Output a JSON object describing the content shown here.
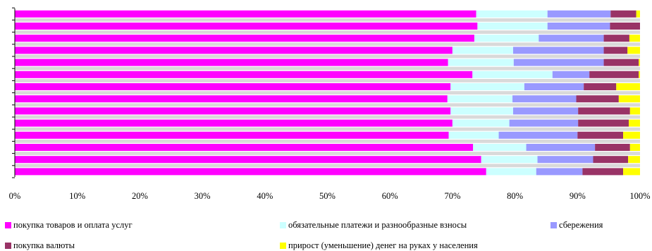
{
  "chart_data": {
    "type": "bar",
    "orientation": "horizontal",
    "stacked": "percent",
    "title": "",
    "xlabel": "",
    "ylabel": "",
    "xlim": [
      0,
      100
    ],
    "x_ticks": [
      "0%",
      "10%",
      "20%",
      "30%",
      "40%",
      "50%",
      "60%",
      "70%",
      "80%",
      "90%",
      "100%"
    ],
    "grid": "vertical",
    "legend_position": "bottom",
    "series": [
      {
        "name": "покупка товаров и оплата услуг",
        "color": "#ff00ff",
        "values": [
          73.8,
          74.0,
          73.5,
          70.0,
          69.3,
          73.2,
          69.7,
          69.2,
          69.7,
          70.0,
          69.4,
          73.3,
          74.6,
          75.4
        ]
      },
      {
        "name": "обязательные платежи и разнообразные взносы",
        "color": "#ccffff",
        "values": [
          11.4,
          11.2,
          10.3,
          9.7,
          10.5,
          12.8,
          11.8,
          10.4,
          10.0,
          9.1,
          8.0,
          8.5,
          9.0,
          8.0
        ]
      },
      {
        "name": "сбережения",
        "color": "#9999ff",
        "values": [
          10.1,
          10.0,
          10.4,
          14.5,
          14.4,
          5.9,
          9.5,
          10.2,
          10.4,
          11.0,
          12.6,
          11.0,
          8.9,
          7.4
        ]
      },
      {
        "name": "покупка валюты",
        "color": "#993366",
        "values": [
          4.1,
          4.8,
          4.1,
          3.8,
          5.6,
          7.9,
          5.2,
          6.8,
          8.3,
          8.1,
          7.3,
          5.6,
          5.6,
          6.5
        ]
      },
      {
        "name": "прирост (уменьшение) денег на руках у населения",
        "color": "#ffff00",
        "values": [
          0.6,
          0.0,
          1.7,
          2.0,
          0.2,
          0.2,
          3.8,
          3.4,
          1.6,
          1.8,
          2.7,
          1.6,
          1.9,
          2.7
        ]
      }
    ]
  }
}
